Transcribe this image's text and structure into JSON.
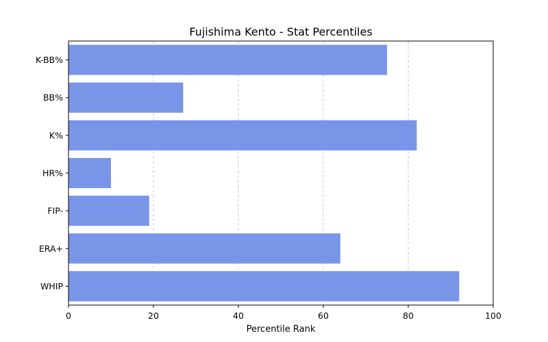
{
  "chart_data": {
    "type": "bar",
    "orientation": "horizontal",
    "title": "Fujishima Kento - Stat Percentiles",
    "xlabel": "Percentile Rank",
    "ylabel": "",
    "categories": [
      "K-BB%",
      "BB%",
      "K%",
      "HR%",
      "FIP-",
      "ERA+",
      "WHIP"
    ],
    "values": [
      75,
      27,
      82,
      10,
      19,
      64,
      92
    ],
    "xlim": [
      0,
      100
    ],
    "xticks": [
      0,
      20,
      40,
      60,
      80,
      100
    ],
    "grid": "x-dashed",
    "bar_color": "#7895e8"
  }
}
